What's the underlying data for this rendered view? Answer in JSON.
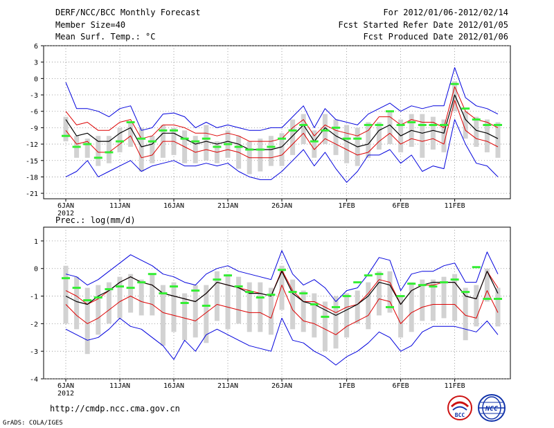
{
  "header": {
    "title": "DERF/NCC/BCC Monthly Forecast",
    "member_size": "Member Size=40",
    "variable": "Mean Surf. Temp.: °C",
    "forecast_range": "For 2012/01/06-2012/02/14",
    "start_date": "Fcst Started Refer Date 2012/01/05",
    "produced_date": "Fcst Produced Date 2012/01/06"
  },
  "footer": {
    "url": "http://cmdp.ncc.cma.gov.cn",
    "grads": "GrADS: COLA/IGES",
    "logo_bcc": "BCC",
    "logo_ncc": "NCC"
  },
  "colors": {
    "spread": "#0000dd",
    "band": "#dd0000",
    "mean": "#000000",
    "box": "#d2d2d2",
    "obs": "#33ee33",
    "grid": "#888888"
  },
  "chart_data": [
    {
      "type": "line",
      "title": "Mean Surf. Temp.: °C",
      "ylim": [
        -22,
        6
      ],
      "yticks": [
        -21,
        -18,
        -15,
        -12,
        -9,
        -6,
        -3,
        0,
        3,
        6
      ],
      "xlabels": [
        {
          "day": 1,
          "label": "6JAN",
          "sub": "2012"
        },
        {
          "day": 6,
          "label": "11JAN"
        },
        {
          "day": 11,
          "label": "16JAN"
        },
        {
          "day": 16,
          "label": "21JAN"
        },
        {
          "day": 21,
          "label": "26JAN"
        },
        {
          "day": 27,
          "label": "1FEB"
        },
        {
          "day": 32,
          "label": "6FEB"
        },
        {
          "day": 37,
          "label": "11FEB"
        }
      ],
      "series": {
        "max": [
          -0.7,
          -5.5,
          -5.5,
          -6.0,
          -7.0,
          -5.5,
          -5.0,
          -9.5,
          -9.0,
          -6.5,
          -6.3,
          -7.0,
          -9.0,
          -8.0,
          -9.0,
          -8.5,
          -9.0,
          -9.5,
          -9.5,
          -9.0,
          -9.0,
          -7.0,
          -5.0,
          -9.0,
          -5.5,
          -7.5,
          -8.0,
          -8.5,
          -6.5,
          -5.5,
          -4.5,
          -6.0,
          -5.0,
          -5.5,
          -5.0,
          -5.0,
          2.0,
          -3.5,
          -5.0,
          -5.5,
          -6.5
        ],
        "p75": [
          -6.0,
          -8.5,
          -8.0,
          -9.5,
          -9.5,
          -8.0,
          -7.5,
          -11.0,
          -10.5,
          -8.5,
          -8.5,
          -9.0,
          -10.0,
          -10.0,
          -10.5,
          -10.0,
          -10.5,
          -11.5,
          -11.5,
          -11.5,
          -11.0,
          -9.0,
          -7.5,
          -10.5,
          -8.5,
          -9.5,
          -10.0,
          -10.5,
          -9.5,
          -7.0,
          -7.0,
          -8.5,
          -7.5,
          -8.0,
          -8.0,
          -9.0,
          -1.5,
          -6.0,
          -7.5,
          -8.0,
          -9.0
        ],
        "mean": [
          -7.5,
          -10.5,
          -10.0,
          -11.5,
          -11.5,
          -10.0,
          -9.0,
          -12.5,
          -12.0,
          -10.0,
          -10.0,
          -11.0,
          -12.0,
          -11.5,
          -12.0,
          -11.5,
          -12.0,
          -13.0,
          -13.0,
          -13.0,
          -12.5,
          -10.5,
          -8.5,
          -11.5,
          -9.0,
          -10.5,
          -11.5,
          -12.5,
          -12.0,
          -9.5,
          -8.5,
          -10.5,
          -9.5,
          -10.0,
          -9.5,
          -10.0,
          -3.0,
          -7.5,
          -9.5,
          -10.0,
          -11.0
        ],
        "p25": [
          -9.5,
          -12.0,
          -11.5,
          -13.5,
          -13.5,
          -12.0,
          -10.5,
          -14.5,
          -14.0,
          -11.5,
          -11.5,
          -12.5,
          -13.5,
          -13.0,
          -13.5,
          -13.0,
          -13.5,
          -14.5,
          -14.5,
          -14.5,
          -14.0,
          -12.0,
          -10.0,
          -13.0,
          -11.0,
          -12.0,
          -13.0,
          -14.0,
          -13.5,
          -11.5,
          -10.0,
          -12.0,
          -11.0,
          -11.5,
          -11.0,
          -12.0,
          -4.0,
          -9.5,
          -11.0,
          -11.5,
          -12.5
        ],
        "min": [
          -18.0,
          -17.0,
          -15.0,
          -18.0,
          -17.0,
          -16.0,
          -15.0,
          -17.0,
          -16.0,
          -15.5,
          -15.0,
          -16.0,
          -16.0,
          -15.5,
          -16.0,
          -15.5,
          -17.0,
          -18.0,
          -18.5,
          -18.5,
          -17.0,
          -15.0,
          -13.0,
          -16.0,
          -13.5,
          -16.5,
          -19.0,
          -17.0,
          -14.0,
          -14.0,
          -13.0,
          -15.5,
          -14.0,
          -17.0,
          -16.0,
          -16.5,
          -7.5,
          -12.0,
          -15.5,
          -16.0,
          -18.0
        ],
        "box_hi": [
          -7.0,
          -10.5,
          -11.0,
          -10.5,
          -10.5,
          -9.0,
          -8.0,
          -9.0,
          -10.5,
          -8.5,
          -9.0,
          -9.5,
          -10.5,
          -8.5,
          -11.5,
          -9.5,
          -10.5,
          -11.5,
          -11.0,
          -10.5,
          -10.0,
          -7.5,
          -6.5,
          -9.5,
          -6.5,
          -7.5,
          -8.5,
          -9.0,
          -8.0,
          -8.0,
          -6.0,
          -7.5,
          -6.5,
          -6.5,
          -7.0,
          -7.5,
          -0.5,
          -6.0,
          -7.0,
          -7.5,
          -8.0
        ],
        "box_lo": [
          -11.5,
          -14.5,
          -14.5,
          -16.0,
          -15.5,
          -13.5,
          -12.5,
          -17.0,
          -15.5,
          -14.5,
          -14.0,
          -15.5,
          -15.5,
          -15.0,
          -15.5,
          -14.5,
          -16.5,
          -17.5,
          -17.0,
          -16.0,
          -16.0,
          -14.0,
          -12.0,
          -14.5,
          -12.0,
          -14.0,
          -15.5,
          -16.0,
          -14.5,
          -13.0,
          -12.0,
          -13.5,
          -12.5,
          -14.5,
          -13.0,
          -13.5,
          -6.0,
          -11.0,
          -12.5,
          -13.5,
          -14.5
        ],
        "obs": [
          -10.5,
          -12.5,
          -12.0,
          -14.5,
          -13.5,
          -11.5,
          -8.0,
          -11.0,
          -11.5,
          -9.5,
          -9.5,
          -11.0,
          -11.5,
          -11.0,
          -12.5,
          -12.0,
          -12.5,
          -13.0,
          -13.0,
          -12.5,
          -11.0,
          -9.5,
          -8.5,
          -11.5,
          -9.5,
          -9.0,
          -11.0,
          -11.0,
          -8.5,
          -8.5,
          -6.0,
          -8.5,
          -8.0,
          -8.5,
          -8.5,
          -8.5,
          -1.0,
          -5.5,
          -7.5,
          -8.5,
          -8.5
        ]
      }
    },
    {
      "type": "line",
      "title": "Prec.: log(mm/d)",
      "ylim": [
        -4,
        1.5
      ],
      "yticks": [
        -4,
        -3,
        -2,
        -1,
        0,
        1
      ],
      "xlabels": [
        {
          "day": 1,
          "label": "6JAN",
          "sub": "2012"
        },
        {
          "day": 6,
          "label": "11JAN"
        },
        {
          "day": 11,
          "label": "16JAN"
        },
        {
          "day": 16,
          "label": "21JAN"
        },
        {
          "day": 21,
          "label": "26JAN"
        },
        {
          "day": 27,
          "label": "1FEB"
        },
        {
          "day": 32,
          "label": "6FEB"
        },
        {
          "day": 37,
          "label": "11FEB"
        }
      ],
      "series": {
        "max": [
          -0.2,
          -0.3,
          -0.6,
          -0.4,
          -0.1,
          0.2,
          0.5,
          0.3,
          0.1,
          -0.2,
          -0.3,
          -0.5,
          -0.6,
          -0.2,
          0.0,
          0.1,
          -0.1,
          -0.2,
          -0.3,
          -0.4,
          0.65,
          -0.2,
          -0.6,
          -0.4,
          -0.7,
          -1.2,
          -0.8,
          -0.7,
          -0.2,
          0.4,
          0.3,
          -0.8,
          -0.2,
          -0.1,
          -0.1,
          0.1,
          0.2,
          -0.5,
          -0.5,
          0.6,
          -0.2
        ],
        "p75": [
          -0.8,
          -1.0,
          -1.3,
          -1.1,
          -0.8,
          -0.5,
          -0.3,
          -0.5,
          -0.6,
          -0.9,
          -1.0,
          -1.1,
          -1.2,
          -0.9,
          -0.5,
          -0.6,
          -0.7,
          -0.8,
          -0.9,
          -1.0,
          -0.05,
          -0.8,
          -1.2,
          -1.2,
          -1.4,
          -1.6,
          -1.4,
          -1.3,
          -0.9,
          -0.4,
          -0.5,
          -1.3,
          -0.8,
          -0.6,
          -0.6,
          -0.5,
          -0.5,
          -1.0,
          -1.1,
          -0.1,
          -0.7
        ],
        "mean": [
          -1.0,
          -1.2,
          -1.3,
          -1.0,
          -0.8,
          -0.5,
          -0.3,
          -0.5,
          -0.6,
          -0.9,
          -1.0,
          -1.1,
          -1.2,
          -0.9,
          -0.5,
          -0.6,
          -0.7,
          -0.9,
          -0.9,
          -1.0,
          -0.1,
          -0.9,
          -1.2,
          -1.3,
          -1.5,
          -1.7,
          -1.5,
          -1.3,
          -1.0,
          -0.5,
          -0.6,
          -1.3,
          -0.8,
          -0.6,
          -0.5,
          -0.5,
          -0.5,
          -1.0,
          -1.1,
          -0.1,
          -0.9
        ],
        "p25": [
          -1.3,
          -1.7,
          -2.0,
          -1.8,
          -1.5,
          -1.2,
          -1.0,
          -1.2,
          -1.3,
          -1.6,
          -1.7,
          -1.8,
          -1.9,
          -1.6,
          -1.3,
          -1.4,
          -1.5,
          -1.6,
          -1.6,
          -1.8,
          -0.6,
          -1.5,
          -1.9,
          -2.0,
          -2.2,
          -2.4,
          -2.1,
          -1.9,
          -1.7,
          -1.1,
          -1.2,
          -2.0,
          -1.6,
          -1.4,
          -1.3,
          -1.3,
          -1.3,
          -1.7,
          -1.8,
          -0.8,
          -1.6
        ],
        "min": [
          -2.2,
          -2.4,
          -2.6,
          -2.5,
          -2.2,
          -1.8,
          -2.1,
          -2.2,
          -2.5,
          -2.8,
          -3.3,
          -2.6,
          -3.0,
          -2.4,
          -2.2,
          -2.4,
          -2.6,
          -2.8,
          -2.9,
          -3.0,
          -1.8,
          -2.6,
          -2.7,
          -3.0,
          -3.2,
          -3.5,
          -3.2,
          -3.0,
          -2.7,
          -2.3,
          -2.5,
          -3.0,
          -2.8,
          -2.3,
          -2.1,
          -2.1,
          -2.1,
          -2.2,
          -2.3,
          -1.9,
          -2.4
        ],
        "box_hi": [
          0.1,
          -0.3,
          -0.7,
          -0.6,
          -0.5,
          -0.3,
          -0.2,
          -0.4,
          -0.2,
          -0.6,
          -0.5,
          -0.9,
          -0.6,
          -0.6,
          -0.1,
          -0.2,
          -0.3,
          -0.5,
          -0.5,
          -0.7,
          0.1,
          -0.4,
          -0.8,
          -0.9,
          -1.2,
          -1.0,
          -0.9,
          -0.8,
          -0.5,
          -0.1,
          -0.1,
          -1.0,
          -0.5,
          -0.4,
          -0.4,
          -0.3,
          -0.2,
          -0.7,
          -0.6,
          0.0,
          -0.7
        ],
        "box_lo": [
          -2.0,
          -2.2,
          -3.1,
          -2.4,
          -2.0,
          -1.8,
          -1.6,
          -1.7,
          -1.7,
          -2.8,
          -2.3,
          -2.6,
          -2.5,
          -2.7,
          -1.9,
          -2.2,
          -2.0,
          -2.3,
          -2.3,
          -2.4,
          -1.5,
          -2.2,
          -2.3,
          -2.5,
          -3.0,
          -2.9,
          -2.5,
          -2.0,
          -2.2,
          -1.7,
          -1.6,
          -2.5,
          -2.3,
          -1.9,
          -1.9,
          -1.8,
          -1.9,
          -2.6,
          -2.1,
          -1.2,
          -2.1
        ],
        "obs": [
          -0.35,
          -0.7,
          -1.15,
          -1.05,
          -0.75,
          -0.65,
          -0.7,
          -0.5,
          -0.2,
          -0.9,
          -0.65,
          -1.25,
          -0.8,
          -1.35,
          -0.4,
          -0.25,
          -0.65,
          -0.85,
          -1.05,
          -0.95,
          -0.05,
          -0.85,
          -0.9,
          -1.3,
          -1.75,
          -1.4,
          -1.0,
          -0.5,
          -0.25,
          -0.2,
          -1.4,
          -1.0,
          -0.55,
          -0.6,
          -0.65,
          -0.5,
          -0.4,
          -0.85,
          0.05,
          -1.1,
          -1.1
        ]
      }
    }
  ]
}
